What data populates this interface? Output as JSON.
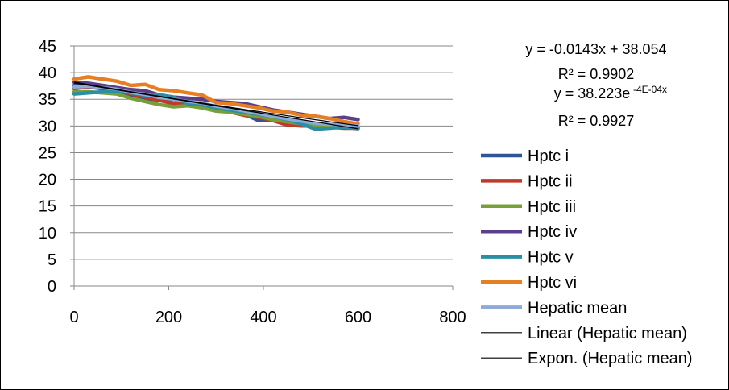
{
  "chart_data": {
    "type": "line",
    "title": "",
    "xlabel": "",
    "ylabel": "",
    "xlim": [
      0,
      800
    ],
    "ylim": [
      0,
      45
    ],
    "x_ticks": [
      0,
      200,
      400,
      600,
      800
    ],
    "y_ticks": [
      0,
      5,
      10,
      15,
      20,
      25,
      30,
      35,
      40,
      45
    ],
    "grid": "horizontal",
    "legend_position": "right",
    "series": [
      {
        "name": "Hptc i",
        "color": "#2f5597",
        "x": [
          0,
          30,
          60,
          90,
          120,
          150,
          180,
          210,
          240,
          270,
          300,
          330,
          360,
          390,
          420,
          450,
          480,
          510,
          540,
          570,
          600
        ],
        "y": [
          37.6,
          37.3,
          37.0,
          36.6,
          35.8,
          35.2,
          34.8,
          35.0,
          34.4,
          34.0,
          33.6,
          33.0,
          32.2,
          31.0,
          31.0,
          30.6,
          30.2,
          29.8,
          29.8,
          29.8,
          29.5
        ]
      },
      {
        "name": "Hptc ii",
        "color": "#c0392b",
        "x": [
          0,
          30,
          60,
          90,
          120,
          150,
          180,
          210,
          240,
          270,
          300,
          330,
          360,
          390,
          420,
          450,
          480,
          510,
          540,
          570,
          600
        ],
        "y": [
          37.0,
          37.4,
          37.2,
          36.8,
          36.0,
          35.4,
          34.8,
          34.2,
          34.0,
          33.8,
          33.2,
          32.6,
          32.0,
          31.6,
          31.0,
          30.2,
          30.0,
          30.0,
          29.8,
          29.6,
          29.6
        ]
      },
      {
        "name": "Hptc iii",
        "color": "#77a038",
        "x": [
          0,
          30,
          60,
          90,
          120,
          150,
          180,
          210,
          240,
          270,
          300,
          330,
          360,
          390,
          420,
          450,
          480,
          510,
          540,
          570,
          600
        ],
        "y": [
          36.4,
          36.4,
          36.2,
          36.0,
          35.2,
          34.6,
          34.0,
          33.6,
          33.8,
          33.4,
          32.8,
          32.6,
          32.2,
          31.8,
          31.2,
          30.8,
          30.4,
          30.0,
          30.0,
          29.8,
          29.6
        ]
      },
      {
        "name": "Hptc iv",
        "color": "#5b3f8a",
        "x": [
          0,
          30,
          60,
          90,
          120,
          150,
          180,
          210,
          240,
          270,
          300,
          330,
          360,
          390,
          420,
          450,
          480,
          510,
          540,
          570,
          600
        ],
        "y": [
          38.2,
          38.0,
          37.6,
          37.2,
          36.8,
          36.6,
          35.8,
          35.4,
          35.2,
          35.0,
          34.6,
          34.4,
          34.2,
          33.6,
          33.0,
          32.6,
          32.2,
          31.8,
          31.4,
          31.6,
          31.2
        ]
      },
      {
        "name": "Hptc v",
        "color": "#2a8fa3",
        "x": [
          0,
          30,
          60,
          90,
          120,
          150,
          180,
          210,
          240,
          270,
          300,
          330,
          360,
          390,
          420,
          450,
          480,
          510,
          540,
          570,
          600
        ],
        "y": [
          36.0,
          36.2,
          36.4,
          36.6,
          36.2,
          35.8,
          35.8,
          35.4,
          34.2,
          34.0,
          33.4,
          33.0,
          32.6,
          32.2,
          31.8,
          31.2,
          30.4,
          29.4,
          29.6,
          29.8,
          29.6
        ]
      },
      {
        "name": "Hptc vi",
        "color": "#e67e22",
        "x": [
          0,
          30,
          60,
          90,
          120,
          150,
          180,
          210,
          240,
          270,
          300,
          330,
          360,
          390,
          420,
          450,
          480,
          510,
          540,
          570,
          600
        ],
        "y": [
          38.8,
          39.2,
          38.8,
          38.4,
          37.6,
          37.8,
          36.8,
          36.6,
          36.2,
          35.8,
          34.4,
          34.2,
          33.8,
          33.4,
          32.8,
          32.6,
          32.0,
          31.8,
          31.4,
          30.8,
          30.4
        ]
      },
      {
        "name": "Hepatic mean",
        "color": "#8eaadb",
        "x": [
          0,
          30,
          60,
          90,
          120,
          150,
          180,
          210,
          240,
          270,
          300,
          330,
          360,
          390,
          420,
          450,
          480,
          510,
          540,
          570,
          600
        ],
        "y": [
          37.3,
          37.4,
          37.2,
          36.9,
          36.3,
          35.9,
          35.3,
          35.0,
          34.6,
          34.3,
          33.7,
          33.3,
          32.8,
          32.3,
          31.8,
          31.3,
          30.9,
          30.5,
          30.3,
          30.2,
          30.0
        ]
      }
    ],
    "trendlines": [
      {
        "name": "Linear (Hepatic mean)",
        "color": "#000000",
        "kind": "linear",
        "slope": -0.0143,
        "intercept": 38.054
      },
      {
        "name": "Expon. (Hepatic mean)",
        "color": "#000000",
        "kind": "exponential",
        "a": 38.223,
        "b": -0.0004
      }
    ],
    "annotations": {
      "linear_eq": "y = -0.0143x + 38.054",
      "linear_r2": "R² = 0.9902",
      "expo_eq": "y = 38.223e",
      "expo_exp": "-4E-04x",
      "expo_r2": "R² = 0.9927"
    }
  }
}
